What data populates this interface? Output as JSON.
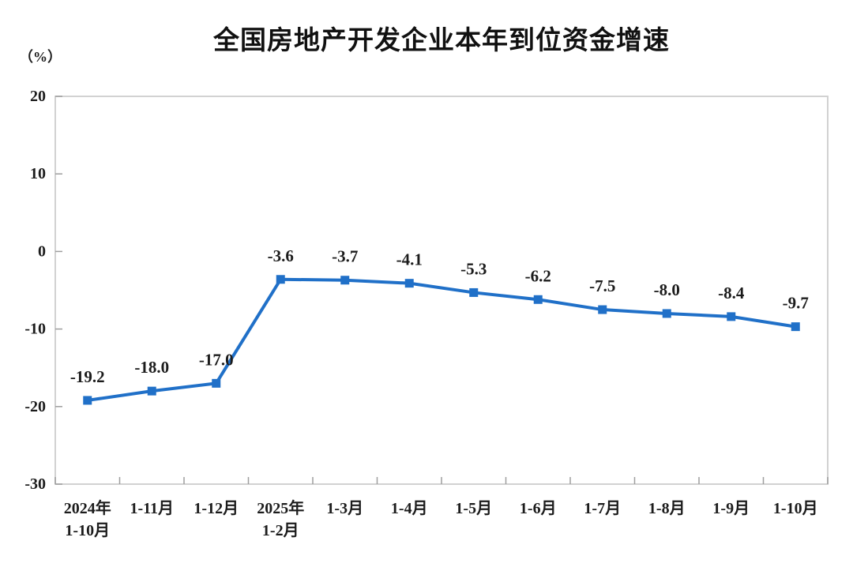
{
  "chart_data": {
    "type": "line",
    "title": "全国房地产开发企业本年到位资金增速",
    "unit_label": "（%）",
    "categories": [
      "2024年\n1-10月",
      "1-11月",
      "1-12月",
      "2025年\n1-2月",
      "1-3月",
      "1-4月",
      "1-5月",
      "1-6月",
      "1-7月",
      "1-8月",
      "1-9月",
      "1-10月"
    ],
    "values": [
      -19.2,
      -18.0,
      -17.0,
      -3.6,
      -3.7,
      -4.1,
      -5.3,
      -6.2,
      -7.5,
      -8.0,
      -8.4,
      -9.7
    ],
    "labels": [
      "-19.2",
      "-18.0",
      "-17.0",
      "-3.6",
      "-3.7",
      "-4.1",
      "-5.3",
      "-6.2",
      "-7.5",
      "-8.0",
      "-8.4",
      "-9.7"
    ],
    "ylim": [
      -30,
      20
    ],
    "yticks": [
      "20",
      "10",
      "0",
      "-10",
      "-20",
      "-30"
    ],
    "grid": false,
    "legend": "none",
    "series_name": "本年到位资金增速",
    "colors": {
      "line": "#2070c8",
      "marker": "#2070c8",
      "axis_text": "#1c1c1c",
      "label_text": "#1c1c1c",
      "border": "#d2d2d2",
      "tick": "#9e9e9e",
      "background": "#ffffff"
    }
  }
}
